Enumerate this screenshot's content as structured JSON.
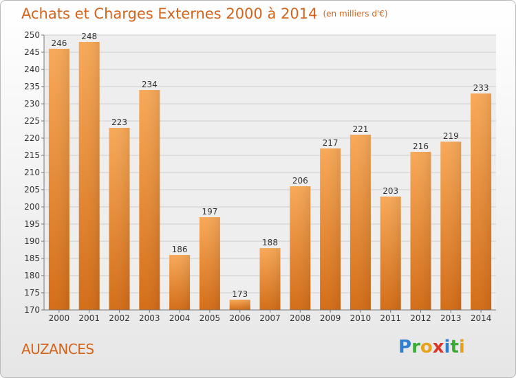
{
  "header": {
    "title": "Achats et Charges Externes 2000 à 2014",
    "subtitle": "(en milliers d'€)"
  },
  "commune": "AUZANCES",
  "logo": {
    "letters": [
      "P",
      "r",
      "o",
      "x",
      "i",
      "t",
      "i"
    ],
    "colors": [
      "#2f7fd0",
      "#3aaa35",
      "#e8a21a",
      "#d9362b",
      "#2f7fd0",
      "#3aaa35",
      "#e8a21a"
    ]
  },
  "chart_data": {
    "type": "bar",
    "title": "Achats et Charges Externes 2000 à 2014",
    "subtitle": "(en milliers d'€)",
    "categories": [
      "2000",
      "2001",
      "2002",
      "2003",
      "2004",
      "2005",
      "2006",
      "2007",
      "2008",
      "2009",
      "2010",
      "2011",
      "2012",
      "2013",
      "2014"
    ],
    "values": [
      246,
      248,
      223,
      234,
      186,
      197,
      173,
      188,
      206,
      217,
      221,
      203,
      216,
      219,
      233
    ],
    "ylim": [
      170,
      250
    ],
    "yticks": [
      170,
      175,
      180,
      185,
      190,
      195,
      200,
      205,
      210,
      215,
      220,
      225,
      230,
      235,
      240,
      245,
      250
    ],
    "grid": true,
    "bar_color": "#e8821f",
    "xlabel": "",
    "ylabel": ""
  }
}
